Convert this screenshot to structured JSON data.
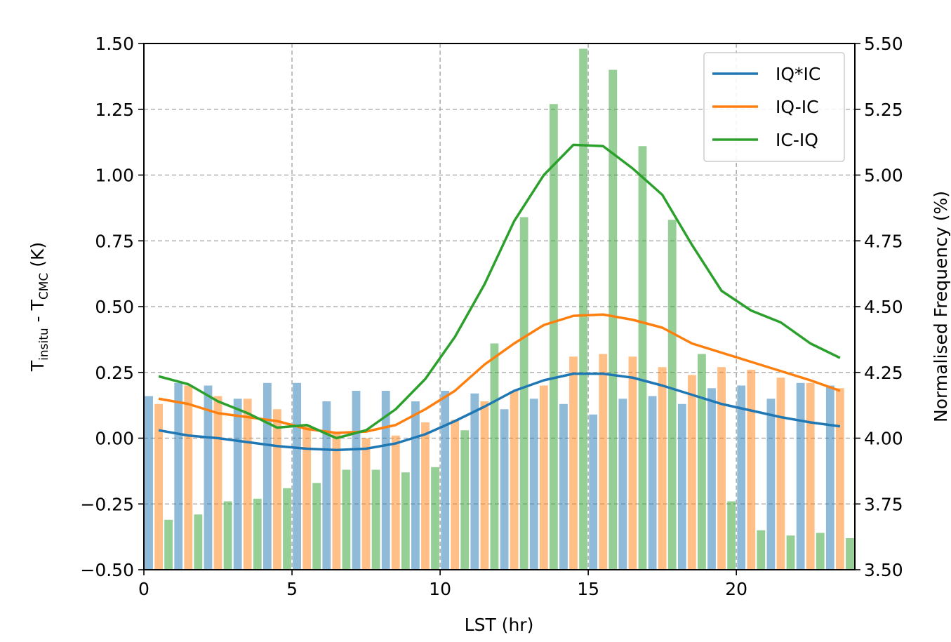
{
  "chart_data": {
    "type": "bar+line",
    "xlabel": "LST (hr)",
    "ylabel": {
      "main": "T",
      "sub1": "insitu",
      "mid": " - T",
      "sub2": "CMC",
      "tail": " (K)"
    },
    "y2label": "Normalised Frequency (%)",
    "xlim": [
      0,
      24
    ],
    "ylim": [
      -0.5,
      1.5
    ],
    "y2lim": [
      3.5,
      5.5
    ],
    "xticks": [
      "0",
      "5",
      "10",
      "15",
      "20"
    ],
    "yticks": [
      "−0.50",
      "−0.25",
      "0.00",
      "0.25",
      "0.50",
      "0.75",
      "1.00",
      "1.25",
      "1.50"
    ],
    "y2ticks": [
      "3.50",
      "3.75",
      "4.00",
      "4.25",
      "4.50",
      "4.75",
      "5.00",
      "5.25",
      "5.50"
    ],
    "grid": true,
    "legend_position": "top-right",
    "colors": {
      "IQ*IC": "#1f77b4",
      "IQ-IC": "#ff7f0e",
      "IC-IQ": "#2ca02c"
    },
    "hours": [
      0.5,
      1.5,
      2.5,
      3.5,
      4.5,
      5.5,
      6.5,
      7.5,
      8.5,
      9.5,
      10.5,
      11.5,
      12.5,
      13.5,
      14.5,
      15.5,
      16.5,
      17.5,
      18.5,
      19.5,
      20.5,
      21.5,
      22.5,
      23.5
    ],
    "lines": [
      {
        "name": "IQ*IC",
        "values": [
          0.03,
          0.01,
          0.0,
          -0.015,
          -0.03,
          -0.04,
          -0.045,
          -0.04,
          -0.02,
          0.015,
          0.065,
          0.12,
          0.18,
          0.22,
          0.245,
          0.245,
          0.23,
          0.2,
          0.165,
          0.13,
          0.105,
          0.08,
          0.06,
          0.045
        ]
      },
      {
        "name": "IQ-IC",
        "values": [
          0.15,
          0.13,
          0.095,
          0.08,
          0.065,
          0.035,
          0.02,
          0.025,
          0.05,
          0.11,
          0.18,
          0.28,
          0.36,
          0.43,
          0.465,
          0.47,
          0.45,
          0.42,
          0.36,
          0.325,
          0.29,
          0.255,
          0.22,
          0.18
        ]
      },
      {
        "name": "IC-IQ",
        "values": [
          0.235,
          0.205,
          0.14,
          0.095,
          0.04,
          0.05,
          0.0,
          0.03,
          0.11,
          0.225,
          0.385,
          0.585,
          0.825,
          1.0,
          1.115,
          1.11,
          1.025,
          0.925,
          0.735,
          0.56,
          0.485,
          0.44,
          0.36,
          0.305
        ]
      }
    ],
    "bars": [
      {
        "name": "IQ*IC",
        "values": [
          4.16,
          4.21,
          4.2,
          4.15,
          4.21,
          4.21,
          4.14,
          4.18,
          4.18,
          4.14,
          4.18,
          4.17,
          4.11,
          4.15,
          4.13,
          4.09,
          4.15,
          4.16,
          4.13,
          4.19,
          4.2,
          4.15,
          4.21,
          4.2
        ]
      },
      {
        "name": "IQ-IC",
        "values": [
          4.13,
          4.2,
          4.16,
          4.15,
          4.11,
          4.05,
          4.02,
          4.0,
          4.01,
          4.06,
          4.07,
          4.14,
          4.18,
          4.2,
          4.31,
          4.32,
          4.31,
          4.27,
          4.24,
          4.27,
          4.26,
          4.23,
          4.21,
          4.19
        ]
      },
      {
        "name": "IC-IQ",
        "values": [
          3.69,
          3.71,
          3.76,
          3.77,
          3.81,
          3.83,
          3.88,
          3.88,
          3.87,
          3.89,
          4.03,
          4.36,
          4.84,
          5.27,
          5.48,
          5.4,
          5.11,
          4.83,
          4.32,
          3.76,
          3.65,
          3.63,
          3.64,
          3.62
        ]
      }
    ]
  }
}
